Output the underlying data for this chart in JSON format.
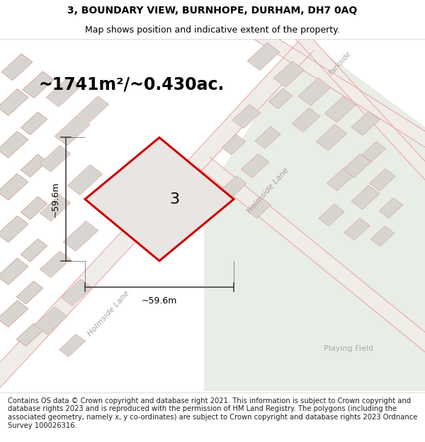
{
  "title_line1": "3, BOUNDARY VIEW, BURNHOPE, DURHAM, DH7 0AQ",
  "title_line2": "Map shows position and indicative extent of the property.",
  "area_label": "~1741m²/~0.430ac.",
  "dim_h": "~59.6m",
  "dim_w": "~59.6m",
  "parcel_number": "3",
  "road_label_diag1": "Holmside Lane",
  "road_label_diag2": "Holmside Lane",
  "road_label_parkside": "Parkside",
  "playing_field_label": "Playing Field",
  "footer_text": "Contains OS data © Crown copyright and database right 2021. This information is subject to Crown copyright and database rights 2023 and is reproduced with the permission of HM Land Registry. The polygons (including the associated geometry, namely x, y co-ordinates) are subject to Crown copyright and database rights 2023 Ordnance Survey 100026316.",
  "bg_left": "#f8f8f6",
  "bg_green": "#e8ede6",
  "road_outline_color": "#e8aaaa",
  "building_fill": "#d8d5d0",
  "building_edge": "#d8a8a0",
  "parcel_fill": "#e8e5e2",
  "parcel_edge": "#cc0000",
  "dim_line_color": "#444444",
  "text_road_color": "#b0a0a0",
  "text_playing_color": "#aaaaaa",
  "title_fontsize": 10,
  "subtitle_fontsize": 9,
  "area_fontsize": 17,
  "parcel_label_fontsize": 16,
  "dim_fontsize": 9,
  "road_label_fontsize": 8,
  "footer_fontsize": 7.2
}
